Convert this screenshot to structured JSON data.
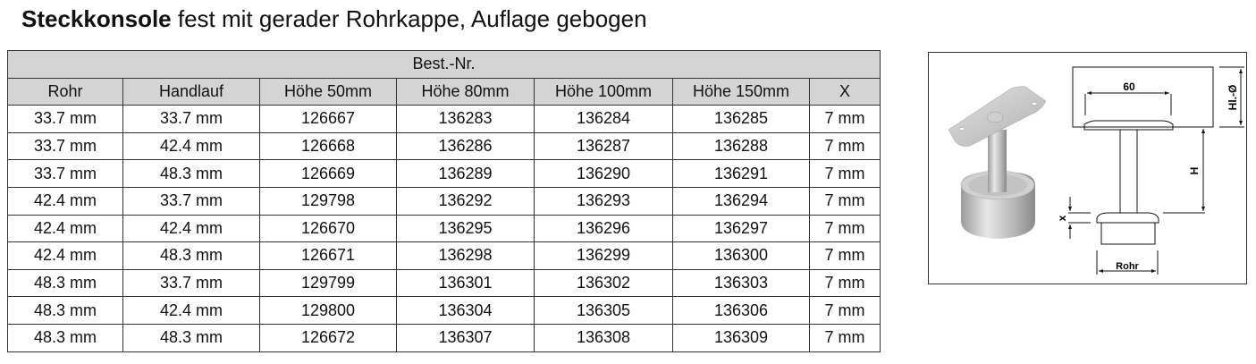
{
  "title": {
    "bold": "Steckkonsole",
    "rest": " fest mit gerader Rohrkappe, Auflage gebogen"
  },
  "table": {
    "group_header": "Best.-Nr.",
    "columns": [
      "Rohr",
      "Handlauf",
      "Höhe 50mm",
      "Höhe 80mm",
      "Höhe 100mm",
      "Höhe 150mm",
      "X"
    ],
    "rows": [
      [
        "33.7 mm",
        "33.7 mm",
        "126667",
        "136283",
        "136284",
        "136285",
        "7 mm"
      ],
      [
        "33.7 mm",
        "42.4 mm",
        "126668",
        "136286",
        "136287",
        "136288",
        "7 mm"
      ],
      [
        "33.7 mm",
        "48.3 mm",
        "126669",
        "136289",
        "136290",
        "136291",
        "7 mm"
      ],
      [
        "42.4 mm",
        "33.7 mm",
        "129798",
        "136292",
        "136293",
        "136294",
        "7 mm"
      ],
      [
        "42.4 mm",
        "42.4 mm",
        "126670",
        "136295",
        "136296",
        "136297",
        "7 mm"
      ],
      [
        "42.4 mm",
        "48.3 mm",
        "126671",
        "136298",
        "136299",
        "136300",
        "7 mm"
      ],
      [
        "48.3 mm",
        "33.7 mm",
        "129799",
        "136301",
        "136302",
        "136303",
        "7 mm"
      ],
      [
        "48.3 mm",
        "42.4 mm",
        "129800",
        "136304",
        "136305",
        "136306",
        "7 mm"
      ],
      [
        "48.3 mm",
        "48.3 mm",
        "126672",
        "136307",
        "136308",
        "136309",
        "7 mm"
      ]
    ]
  },
  "diagram": {
    "dim_width": "60",
    "dim_height": "H",
    "dim_handrail": "Hl.-Ø",
    "dim_x": "x",
    "dim_tube": "Rohr"
  }
}
